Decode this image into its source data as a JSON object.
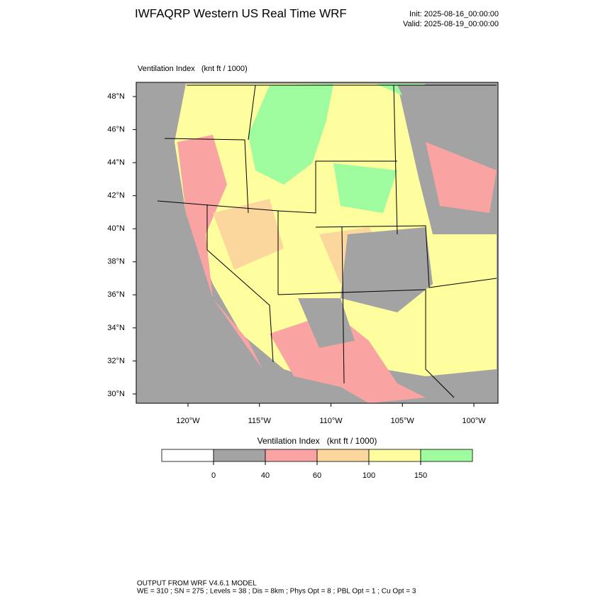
{
  "header": {
    "title": "IWFAQRP Western US Real Time WRF",
    "init": "Init: 2025-08-16_00:00:00",
    "valid": "Valid: 2025-08-19_00:00:00"
  },
  "map": {
    "field_label": "Ventilation Index   (knt ft / 1000)",
    "lat_labels": [
      "48°N",
      "46°N",
      "44°N",
      "42°N",
      "40°N",
      "38°N",
      "36°N",
      "34°N",
      "32°N",
      "30°N"
    ],
    "lon_labels": [
      "120°W",
      "115°W",
      "110°W",
      "105°W",
      "100°W"
    ]
  },
  "colorbar": {
    "title": "Ventilation Index   (knt ft / 1000)",
    "colors": [
      "#ffffff",
      "#a3a3a3",
      "#f9a3a3",
      "#fcd79d",
      "#fefe9e",
      "#9efc9e"
    ],
    "ticks": [
      0,
      40,
      60,
      100,
      150
    ]
  },
  "footer": {
    "line1": "OUTPUT FROM WRF V4.6.1 MODEL",
    "line2": "WE = 310 ; SN = 275 ; Levels = 38 ; Dis = 8km ; Phys Opt = 8 ; PBL Opt = 1 ; Cu Opt = 3"
  }
}
